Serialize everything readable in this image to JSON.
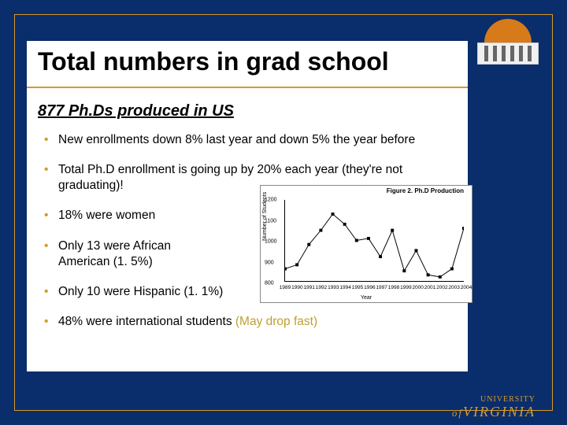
{
  "title": "Total numbers in grad school",
  "subtitle": "877 Ph.Ds produced in US",
  "bullets": [
    {
      "text": "New enrollments down 8% last year and down 5% the year before"
    },
    {
      "text": "Total Ph.D enrollment is going up by 20% each year (they're not graduating)!"
    },
    {
      "text": "18% were women"
    },
    {
      "text": "Only 13 were African American (1. 5%)"
    },
    {
      "text": "Only 10 were Hispanic (1. 1%)"
    },
    {
      "text_a": "48% were international students ",
      "text_b": "(May drop fast)"
    }
  ],
  "chart": {
    "type": "line",
    "title": "Figure 2. Ph.D Production",
    "xlabel": "Year",
    "ylabel": "Number of Students",
    "ylim": [
      800,
      1200
    ],
    "ytick_step": 100,
    "xcategories": [
      "1989",
      "1990",
      "1991",
      "1992",
      "1993",
      "1994",
      "1995",
      "1996",
      "1997",
      "1998",
      "1999",
      "2000",
      "2001",
      "2002",
      "2003",
      "2004"
    ],
    "values": [
      860,
      880,
      980,
      1050,
      1130,
      1080,
      1000,
      1010,
      920,
      1050,
      850,
      950,
      830,
      820,
      860,
      1060
    ],
    "line_color": "#000000",
    "marker": "square",
    "marker_size": 4,
    "background_color": "#ffffff",
    "axis_color": "#000000",
    "label_fontsize": 7
  },
  "colors": {
    "slide_bg": "#0a2d6b",
    "accent_gold": "#d69a2a",
    "content_bg": "#ffffff",
    "text": "#000000"
  },
  "logo": {
    "name_line1": "UNIVERSITY",
    "name_line2_of": "of",
    "name_line2": "VIRGINIA"
  }
}
